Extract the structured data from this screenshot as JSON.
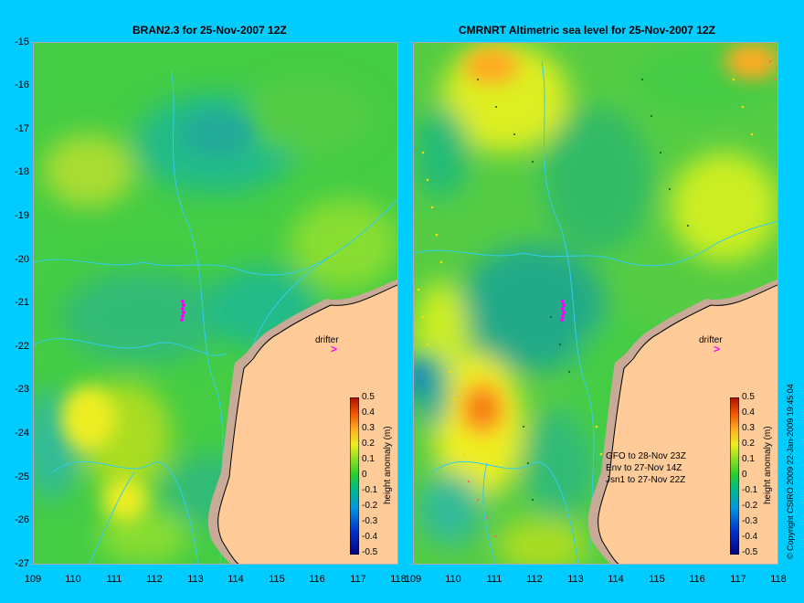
{
  "panels": [
    {
      "title": "BRAN2.3 for 25-Nov-2007 12Z"
    },
    {
      "title": "CMRNRT Altimetric sea level  for 25-Nov-2007 12Z"
    }
  ],
  "y_ticks": [
    "-15",
    "-16",
    "-17",
    "-18",
    "-19",
    "-20",
    "-21",
    "-22",
    "-23",
    "-24",
    "-25",
    "-26",
    "-27"
  ],
  "x_ticks": [
    "109",
    "110",
    "111",
    "112",
    "113",
    "114",
    "115",
    "116",
    "117",
    "118"
  ],
  "colorbar": {
    "label": "height anomaly (m)",
    "ticks": [
      "0.5",
      "0.4",
      "0.3",
      "0.2",
      "0.1",
      "0",
      "-0.1",
      "-0.2",
      "-0.3",
      "-0.4",
      "-0.5"
    ]
  },
  "drifter_label": "drifter",
  "drifter_marker": ">",
  "drifter_color": "#ff00ff",
  "satellites": [
    "GFO to 28-Nov 23Z",
    "Env to 27-Nov 14Z",
    "Jsn1 to 27-Nov 22Z"
  ],
  "copyright": "© Copyright CSIRO 2009   22-Jan-2009 19:45:04",
  "colors": {
    "background": "#00ccff",
    "land": "#ffcc99",
    "shelf": "#c8aa96",
    "contour": "#33ccee"
  }
}
